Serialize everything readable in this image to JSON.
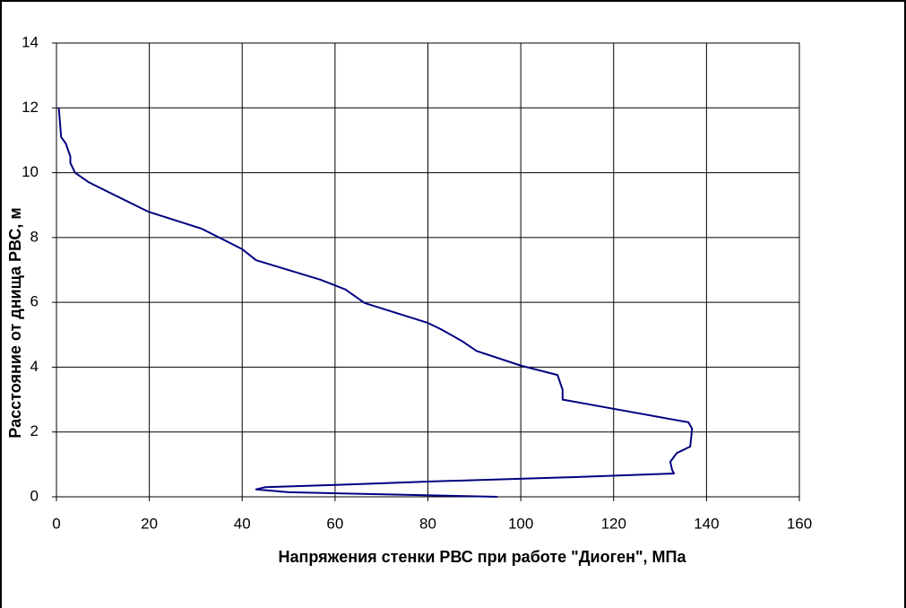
{
  "chart_data": {
    "type": "line",
    "xlabel": "Напряжения стенки РВС при работе \"Диоген\", МПа",
    "ylabel": "Расстояние от днища РВС,  м",
    "x": [
      95,
      75,
      50,
      43,
      45,
      65,
      80,
      110,
      133,
      132.6,
      132.2,
      133.6,
      136.5,
      136.9,
      136.1,
      109,
      109,
      107.9,
      100.2,
      90.5,
      87.3,
      82.8,
      79.9,
      66.4,
      62.2,
      56.8,
      43,
      40,
      31.3,
      19.7,
      7,
      4,
      3,
      3,
      2,
      1,
      0.8,
      0.5
    ],
    "y": [
      0,
      0.06,
      0.14,
      0.23,
      0.3,
      0.39,
      0.47,
      0.6,
      0.72,
      0.83,
      1.08,
      1.35,
      1.55,
      2.1,
      2.3,
      3.0,
      3.3,
      3.76,
      4.04,
      4.5,
      4.81,
      5.17,
      5.37,
      5.98,
      6.4,
      6.7,
      7.3,
      7.64,
      8.27,
      8.8,
      9.7,
      10.0,
      10.3,
      10.5,
      10.9,
      11.1,
      11.5,
      12
    ],
    "color": "#000080",
    "xlim": [
      0,
      160
    ],
    "xticks": [
      0,
      20,
      40,
      60,
      80,
      100,
      120,
      140,
      160
    ],
    "ylim": [
      0,
      14
    ],
    "yticks": [
      0,
      2,
      4,
      6,
      8,
      10,
      12,
      14
    ],
    "grid": true
  }
}
